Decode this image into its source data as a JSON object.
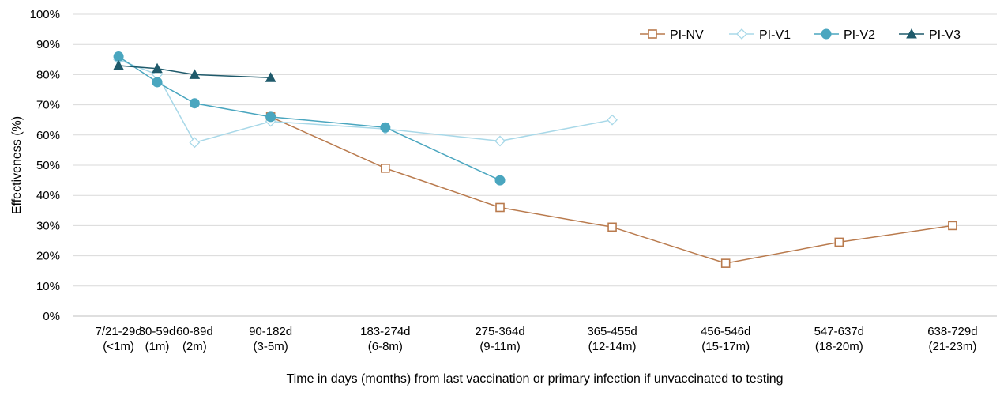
{
  "chart_data": {
    "type": "line",
    "xlabel": "Time in days (months) from last vaccination or primary infection if unvaccinated  to testing",
    "ylabel": "Effectiveness (%)",
    "ylim": [
      0,
      100
    ],
    "yticks": [
      "0%",
      "10%",
      "20%",
      "30%",
      "40%",
      "50%",
      "60%",
      "70%",
      "80%",
      "90%",
      "100%"
    ],
    "grid": true,
    "legend_position": "top-right",
    "categories": [
      {
        "line1": "7/21-29d",
        "line2": "(<1m)",
        "x": 14
      },
      {
        "line1": "30-59d",
        "line2": "(1m)",
        "x": 45
      },
      {
        "line1": "60-89d",
        "line2": "(2m)",
        "x": 75
      },
      {
        "line1": "90-182d",
        "line2": "(3-5m)",
        "x": 136
      },
      {
        "line1": "183-274d",
        "line2": "(6-8m)",
        "x": 228
      },
      {
        "line1": "275-364d",
        "line2": "(9-11m)",
        "x": 320
      },
      {
        "line1": "365-455d",
        "line2": "(12-14m)",
        "x": 410
      },
      {
        "line1": "456-546d",
        "line2": "(15-17m)",
        "x": 501
      },
      {
        "line1": "547-637d",
        "line2": "(18-20m)",
        "x": 592
      },
      {
        "line1": "638-729d",
        "line2": "(21-23m)",
        "x": 683
      }
    ],
    "series": [
      {
        "name": "PI-NV",
        "color": "#b97a4d",
        "marker": "square",
        "x": [
          136,
          228,
          320,
          410,
          501,
          592,
          683
        ],
        "values": [
          66,
          49,
          36,
          29.5,
          17.5,
          24.5,
          30
        ]
      },
      {
        "name": "PI-V1",
        "color": "#a8d8e8",
        "marker": "diamond",
        "x": [
          14,
          45,
          75,
          136,
          228,
          320,
          410
        ],
        "values": [
          85,
          80,
          57.5,
          64.5,
          62,
          58,
          65
        ]
      },
      {
        "name": "PI-V2",
        "color": "#4aa6bf",
        "marker": "circle",
        "x": [
          14,
          45,
          75,
          136,
          228,
          320
        ],
        "values": [
          86,
          77.5,
          70.5,
          66,
          62.5,
          45
        ]
      },
      {
        "name": "PI-V3",
        "color": "#1f5a6b",
        "marker": "triangle",
        "x": [
          14,
          45,
          75,
          136
        ],
        "values": [
          83,
          82,
          80,
          79
        ]
      }
    ]
  }
}
